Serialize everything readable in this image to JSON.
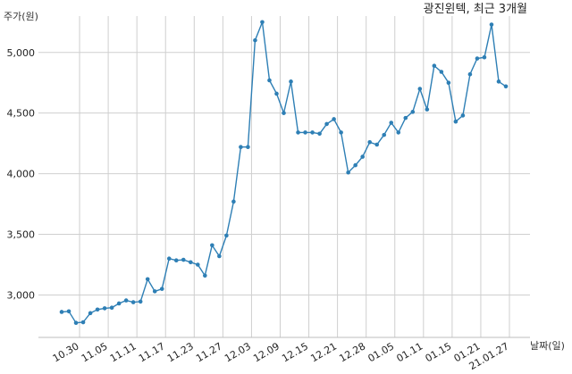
{
  "chart_data": {
    "type": "line",
    "title": "광진윈텍, 최근 3개월",
    "ylabel": "주가(원)",
    "xlabel": "날짜(일)",
    "ylim": [
      2650,
      5300
    ],
    "yticks": [
      3000,
      3500,
      4000,
      4500,
      5000
    ],
    "ytick_labels": [
      "3,000",
      "3,500",
      "4,000",
      "4,500",
      "5,000"
    ],
    "xtick_labels": [
      "10.30",
      "11.05",
      "11.11",
      "11.17",
      "11.23",
      "11.27",
      "12.03",
      "12.09",
      "12.15",
      "12.21",
      "12.28",
      "01.05",
      "01.11",
      "01.15",
      "01.21",
      "21.01.27"
    ],
    "xtick_positions": [
      2.5,
      6.5,
      10.5,
      14.5,
      18.5,
      22.5,
      26.5,
      30.5,
      34.5,
      38.5,
      42.5,
      46.5,
      50.5,
      54.5,
      58.5,
      62.5
    ],
    "color": "#2e7fb5",
    "grid": true,
    "values": [
      2860,
      2865,
      2770,
      2775,
      2850,
      2880,
      2890,
      2895,
      2930,
      2955,
      2940,
      2945,
      3130,
      3030,
      3050,
      3300,
      3285,
      3290,
      3270,
      3250,
      3160,
      3410,
      3320,
      3490,
      3770,
      4220,
      4220,
      5100,
      5250,
      4770,
      4660,
      4500,
      4760,
      4340,
      4340,
      4340,
      4330,
      4410,
      4450,
      4340,
      4010,
      4070,
      4140,
      4260,
      4240,
      4320,
      4420,
      4340,
      4460,
      4510,
      4700,
      4530,
      4890,
      4840,
      4750,
      4430,
      4480,
      4820,
      4950,
      4960,
      5230,
      4760,
      4720
    ]
  }
}
